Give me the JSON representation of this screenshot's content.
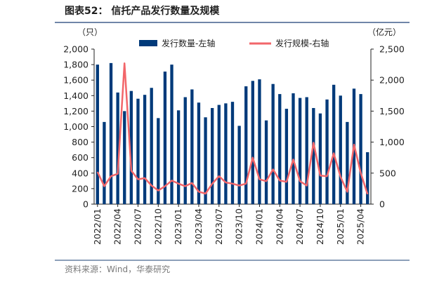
{
  "figure": {
    "title": "图表52：  信托产品发行数量及规模",
    "source": "资料来源：Wind，华泰研究"
  },
  "chart_data": {
    "type": "bar",
    "title": "信托产品发行数量及规模",
    "left_unit": "（只）",
    "right_unit": "（亿元）",
    "categories": [
      "2022/01",
      "2022/02",
      "2022/03",
      "2022/04",
      "2022/05",
      "2022/06",
      "2022/07",
      "2022/08",
      "2022/09",
      "2022/10",
      "2022/11",
      "2022/12",
      "2023/01",
      "2023/02",
      "2023/03",
      "2023/04",
      "2023/05",
      "2023/06",
      "2023/07",
      "2023/08",
      "2023/09",
      "2023/10",
      "2023/11",
      "2023/12",
      "2024/01",
      "2024/02",
      "2024/03",
      "2024/04",
      "2024/05",
      "2024/06",
      "2024/07",
      "2024/08",
      "2024/09",
      "2024/10",
      "2024/11",
      "2024/12",
      "2025/01",
      "2025/02",
      "2025/03",
      "2025/04",
      "2025/05"
    ],
    "x_tick_labels": [
      "2022/01",
      "2022/04",
      "2022/07",
      "2022/10",
      "2023/01",
      "2023/04",
      "2023/07",
      "2023/10",
      "2024/01",
      "2024/04",
      "2024/07",
      "2024/10",
      "2025/01",
      "2025/04"
    ],
    "series": [
      {
        "name": "发行数量-左轴",
        "type": "bar",
        "axis": "left",
        "color": "#003a7a",
        "values": [
          1800,
          1060,
          1820,
          1440,
          1200,
          1460,
          1360,
          1410,
          1500,
          1110,
          1710,
          1800,
          1210,
          1380,
          1480,
          1310,
          1120,
          1240,
          1280,
          1300,
          1320,
          1010,
          1520,
          1590,
          1610,
          1080,
          1550,
          1420,
          1230,
          1430,
          1370,
          1380,
          1240,
          1170,
          1350,
          1540,
          1400,
          1060,
          1490,
          1420,
          670
        ]
      },
      {
        "name": "发行规模-右轴",
        "type": "line",
        "axis": "right",
        "color": "#f2666a",
        "values": [
          520,
          290,
          450,
          490,
          2270,
          540,
          400,
          420,
          300,
          220,
          290,
          380,
          330,
          290,
          340,
          200,
          170,
          330,
          450,
          350,
          330,
          300,
          330,
          750,
          400,
          370,
          560,
          380,
          360,
          720,
          370,
          300,
          990,
          460,
          450,
          820,
          440,
          200,
          960,
          500,
          160
        ]
      }
    ],
    "left_axis": {
      "min": 0,
      "max": 2000,
      "ticks": [
        "0",
        "200",
        "400",
        "600",
        "800",
        "1,000",
        "1,200",
        "1,400",
        "1,600",
        "1,800",
        "2,000"
      ]
    },
    "right_axis": {
      "min": 0,
      "max": 2500,
      "ticks": [
        "0",
        "500",
        "1,000",
        "1,500",
        "2,000",
        "2,500"
      ]
    },
    "legend_position": "top-center",
    "grid": false
  }
}
